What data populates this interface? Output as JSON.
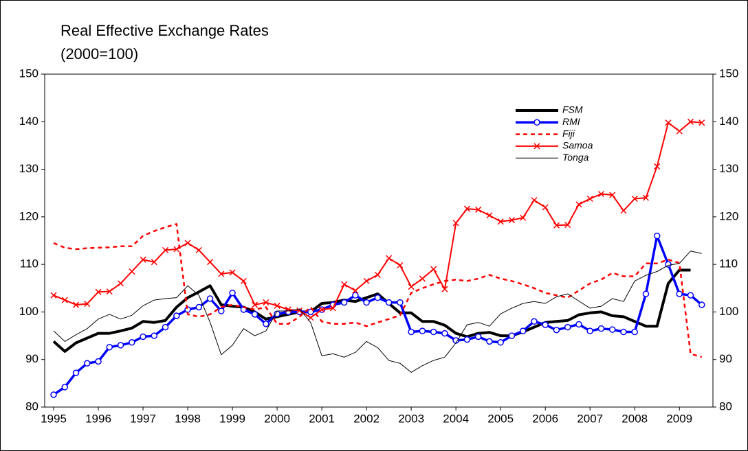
{
  "chart_data": {
    "type": "line",
    "title": "Real Effective Exchange Rates",
    "subtitle": "(2000=100)",
    "x": [
      1995,
      1995.25,
      1995.5,
      1995.75,
      1996,
      1996.25,
      1996.5,
      1996.75,
      1997,
      1997.25,
      1997.5,
      1997.75,
      1998,
      1998.25,
      1998.5,
      1998.75,
      1999,
      1999.25,
      1999.5,
      1999.75,
      2000,
      2000.25,
      2000.5,
      2000.75,
      2001,
      2001.25,
      2001.5,
      2001.75,
      2002,
      2002.25,
      2002.5,
      2002.75,
      2003,
      2003.25,
      2003.5,
      2003.75,
      2004,
      2004.25,
      2004.5,
      2004.75,
      2005,
      2005.25,
      2005.5,
      2005.75,
      2006,
      2006.25,
      2006.5,
      2006.75,
      2007,
      2007.25,
      2007.5,
      2007.75,
      2008,
      2008.25,
      2008.5,
      2008.75,
      2009,
      2009.25,
      2009.5
    ],
    "xlim": [
      1994.8,
      2009.75
    ],
    "xticks": [
      1995,
      1996,
      1997,
      1998,
      1999,
      2000,
      2001,
      2002,
      2003,
      2004,
      2005,
      2006,
      2007,
      2008,
      2009
    ],
    "ylim": [
      80,
      150
    ],
    "yticks": [
      80,
      90,
      100,
      110,
      120,
      130,
      140,
      150
    ],
    "y2lim": [
      80,
      150
    ],
    "y2ticks": [
      80,
      90,
      100,
      110,
      120,
      130,
      140,
      150
    ],
    "grid": false,
    "legend": "upper right",
    "series": [
      {
        "name": "FSM",
        "color": "#000000",
        "width": 4,
        "dash": false,
        "marker": "none",
        "values": [
          93.8,
          91.7,
          93.5,
          94.5,
          95.5,
          95.5,
          96,
          96.6,
          98,
          97.8,
          98.2,
          101,
          103,
          104.2,
          105.5,
          101.5,
          101.2,
          101,
          100,
          98.5,
          99,
          99.5,
          100,
          100,
          101.8,
          102,
          102.5,
          102.2,
          103,
          103.8,
          101.8,
          99.8,
          99.8,
          98,
          98,
          97.2,
          95.5,
          94.8,
          95.5,
          95.7,
          95,
          95,
          95.8,
          96.8,
          97.8,
          98,
          98.2,
          99.4,
          99.8,
          100,
          99.2,
          99,
          98,
          97,
          97,
          106,
          108.8,
          108.8,
          null
        ]
      },
      {
        "name": "RMI",
        "color": "#0000ff",
        "width": 3.5,
        "dash": false,
        "marker": "circle",
        "values": [
          82.6,
          84.2,
          87.2,
          89.2,
          89.6,
          92.6,
          93,
          93.6,
          94.8,
          95,
          96.8,
          99.2,
          100.5,
          101,
          102.8,
          100.2,
          104,
          100.5,
          99.5,
          97.5,
          99.6,
          100,
          100,
          100,
          100.5,
          101.5,
          102,
          103.5,
          102,
          103,
          102,
          102,
          95.8,
          96,
          95.8,
          95.5,
          94,
          94.2,
          94.8,
          93.8,
          93.6,
          95,
          96,
          98,
          97.3,
          96.2,
          96.8,
          97.4,
          96,
          96.5,
          96.3,
          95.8,
          95.8,
          103.8,
          116,
          110,
          103.8,
          103.5,
          101.5
        ]
      },
      {
        "name": "Fiji",
        "color": "#ff0000",
        "width": 2.5,
        "dash": true,
        "marker": "none",
        "values": [
          114.5,
          113.5,
          113.2,
          113.4,
          113.5,
          113.6,
          113.8,
          113.8,
          116,
          117,
          117.8,
          118.5,
          99.5,
          99,
          99.5,
          101,
          101.5,
          101,
          100.5,
          101,
          97.5,
          97.5,
          99,
          101,
          98,
          97.5,
          97.5,
          97.8,
          97,
          97.8,
          98.5,
          99.3,
          104,
          105,
          105.8,
          106.5,
          106.8,
          106.5,
          107,
          107.8,
          107,
          106.5,
          105.8,
          105,
          104,
          103.5,
          103,
          104.5,
          106,
          106.8,
          108.2,
          107.5,
          107.5,
          110.2,
          110.2,
          111,
          110.3,
          91.2,
          90.5
        ]
      },
      {
        "name": "Samoa",
        "color": "#ff0000",
        "width": 2,
        "dash": false,
        "marker": "x",
        "values": [
          103.5,
          102.5,
          101.5,
          101.7,
          104.2,
          104.3,
          106,
          108.5,
          111,
          110.5,
          113,
          113.2,
          114.5,
          113,
          110.5,
          108,
          108.3,
          106.5,
          101.5,
          102,
          101.3,
          100.5,
          100.3,
          98.8,
          100.5,
          100.8,
          105.8,
          104.5,
          106.5,
          107.8,
          111.3,
          109.8,
          105.3,
          107,
          109,
          104.8,
          118.7,
          121.7,
          121.5,
          120.3,
          119,
          119.3,
          119.8,
          123.5,
          122,
          118.2,
          118.3,
          122.6,
          123.8,
          124.8,
          124.6,
          121.3,
          123.8,
          124,
          130.6,
          139.8,
          138,
          140,
          139.8
        ]
      },
      {
        "name": "Tonga",
        "color": "#000000",
        "width": 1,
        "dash": false,
        "marker": "none",
        "values": [
          96,
          93.8,
          95.2,
          96.5,
          98.5,
          99.5,
          98.5,
          99.3,
          101.3,
          102.5,
          102.8,
          103,
          105.5,
          103.5,
          97.8,
          91,
          93,
          96.5,
          95,
          96,
          100.2,
          100.2,
          100.6,
          97.8,
          90.8,
          91.2,
          90.5,
          91.5,
          93.8,
          92.5,
          89.8,
          89.2,
          87.3,
          88.7,
          89.8,
          90.5,
          93.5,
          97.3,
          97.8,
          97,
          99.6,
          100.8,
          101.8,
          102.2,
          101.8,
          103.2,
          103.8,
          102.3,
          100.8,
          101.2,
          102.8,
          102.2,
          106.5,
          107.7,
          108.5,
          109.8,
          110.2,
          112.8,
          112.3
        ]
      }
    ]
  }
}
